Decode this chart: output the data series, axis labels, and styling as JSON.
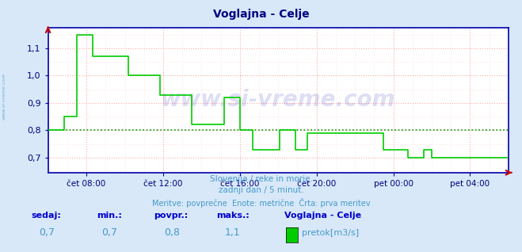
{
  "title": "Voglajna - Celje",
  "title_color": "#000080",
  "bg_color": "#d8e8f8",
  "plot_bg_color": "#ffffff",
  "grid_color_major": "#ffaaaa",
  "grid_color_minor": "#ffdddd",
  "line_color": "#00cc00",
  "avg_line_color": "#009900",
  "avg_value": 0.8,
  "ylim": [
    0.645,
    1.175
  ],
  "yticks": [
    0.7,
    0.8,
    0.9,
    1.0,
    1.1
  ],
  "ylabel_color": "#000080",
  "xticklabels": [
    "čet 08:00",
    "čet 12:00",
    "čet 16:00",
    "čet 20:00",
    "pet 00:00",
    "pet 04:00"
  ],
  "xlabel_color": "#000080",
  "watermark": "www.si-vreme.com",
  "watermark_color": "#0000aa",
  "watermark_alpha": 0.13,
  "subtitle1": "Slovenija / reke in morje.",
  "subtitle2": "zadnji dan / 5 minut.",
  "subtitle3": "Meritve: povprečne  Enote: metrične  Črta: prva meritev",
  "subtitle_color": "#4499cc",
  "bottom_label_color": "#0000cc",
  "bottom_value_color": "#4499cc",
  "sedaj_label": "sedaj:",
  "sedaj_value": "0,7",
  "min_label": "min.:",
  "min_value": "0,7",
  "povpr_label": "povpr.:",
  "povpr_value": "0,8",
  "maks_label": "maks.:",
  "maks_value": "1,1",
  "station_name": "Voglajna - Celje",
  "legend_label": "pretok[m3/s]",
  "legend_color": "#00cc00",
  "left_text": "www.si-vreme.com",
  "axis_arrow_color": "#cc0000",
  "spine_color": "#0000aa",
  "n_points": 288,
  "xtick_positions": [
    24,
    72,
    120,
    168,
    216,
    264
  ]
}
